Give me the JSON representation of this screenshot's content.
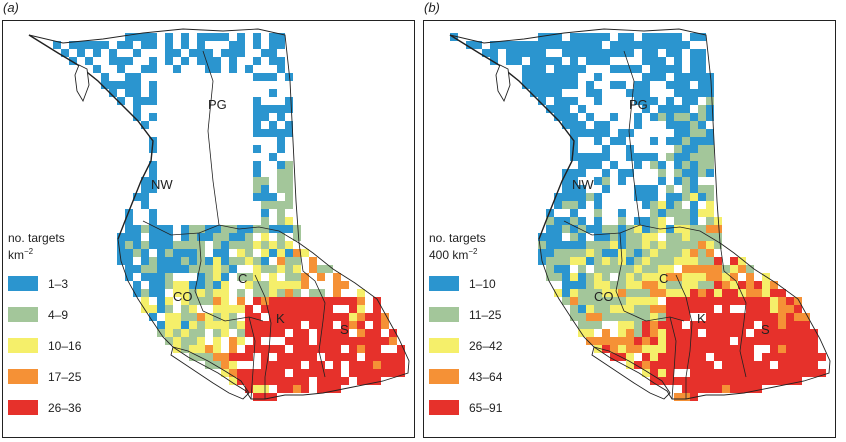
{
  "colors": {
    "c1": "#2b95cf",
    "c2": "#a3c69a",
    "c3": "#f5ef6a",
    "c4": "#f59136",
    "c5": "#e6312b"
  },
  "panels": [
    {
      "letter": "(a)",
      "legend": {
        "title_line1": "no. targets",
        "title_line2_base": "km",
        "title_line2_sup": "−2",
        "items": [
          {
            "label": "1–3",
            "color": "#2b95cf"
          },
          {
            "label": "4–9",
            "color": "#a3c69a"
          },
          {
            "label": "10–16",
            "color": "#f5ef6a"
          },
          {
            "label": "17–25",
            "color": "#f59136"
          },
          {
            "label": "26–36",
            "color": "#e6312b"
          }
        ]
      },
      "regions": [
        "PG",
        "NW",
        "C",
        "CO",
        "K",
        "S"
      ]
    },
    {
      "letter": "(b)",
      "legend": {
        "title_line1": "no. targets",
        "title_line2_base": "400 km",
        "title_line2_sup": "−2",
        "items": [
          {
            "label": "1–10",
            "color": "#2b95cf"
          },
          {
            "label": "11–25",
            "color": "#a3c69a"
          },
          {
            "label": "26–42",
            "color": "#f5ef6a"
          },
          {
            "label": "43–64",
            "color": "#f59136"
          },
          {
            "label": "65–91",
            "color": "#e6312b"
          }
        ]
      },
      "regions": [
        "PG",
        "NW",
        "C",
        "CO",
        "K",
        "S"
      ]
    }
  ]
}
